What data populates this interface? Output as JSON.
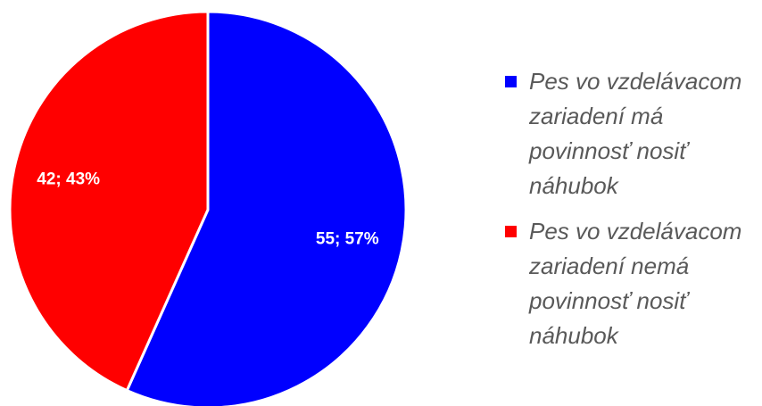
{
  "chart_data": {
    "type": "pie",
    "categories": [
      "Pes vo vzdelávacom zariadení má povinnosť nosiť náhubok",
      "Pes vo vzdelávacom zariadení nemá povinnosť nosiť náhubok"
    ],
    "values": [
      55,
      42
    ],
    "value_labels": [
      "55; 57%",
      "42; 43%"
    ],
    "colors": [
      "#0000ff",
      "#ff0000"
    ],
    "legend": "right"
  }
}
